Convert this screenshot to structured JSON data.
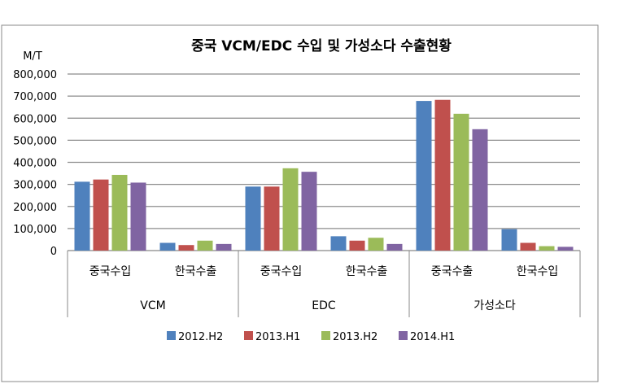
{
  "chart_data": {
    "type": "bar",
    "title": "중국 VCM/EDC 수입 및 가성소다 수출현황",
    "ylabel": "M/T",
    "xlabel": "",
    "ylim": [
      0,
      800000
    ],
    "yticks": [
      "0",
      "100,000",
      "200,000",
      "300,000",
      "400,000",
      "500,000",
      "600,000",
      "700,000",
      "800,000"
    ],
    "grid": true,
    "legend_position": "bottom",
    "groups": [
      {
        "label": "VCM",
        "categories": [
          "중국수입",
          "한국수출"
        ]
      },
      {
        "label": "EDC",
        "categories": [
          "중국수입",
          "한국수출"
        ]
      },
      {
        "label": "가성소다",
        "categories": [
          "중국수출",
          "한국수입"
        ]
      }
    ],
    "series": [
      {
        "name": "2012.H2",
        "color": "#4f81bd",
        "values": [
          312000,
          35000,
          290000,
          65000,
          678000,
          97000
        ]
      },
      {
        "name": "2013.H1",
        "color": "#c0504d",
        "values": [
          322000,
          25000,
          290000,
          45000,
          683000,
          35000
        ]
      },
      {
        "name": "2013.H2",
        "color": "#9bbb59",
        "values": [
          343000,
          45000,
          373000,
          58000,
          620000,
          20000
        ]
      },
      {
        "name": "2014.H1",
        "color": "#8064a2",
        "values": [
          308000,
          30000,
          357000,
          30000,
          550000,
          17000
        ]
      }
    ]
  }
}
